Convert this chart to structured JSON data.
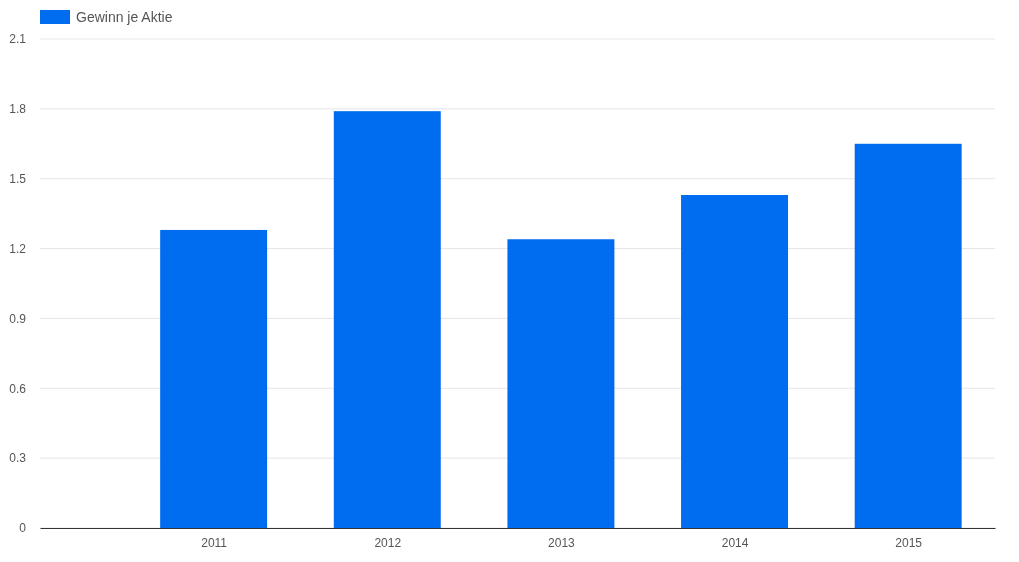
{
  "chart_data": {
    "type": "bar",
    "x": [
      2011,
      2012,
      2013,
      2014,
      2015
    ],
    "xlim": [
      2010,
      2015.5
    ],
    "xticks": [
      2011,
      2012,
      2013,
      2014,
      2015
    ],
    "series": [
      {
        "name": "Gewinn je Aktie",
        "color": "#006cf0",
        "values": [
          1.28,
          1.79,
          1.24,
          1.43,
          1.65
        ]
      }
    ],
    "ylim": [
      0,
      2.1
    ],
    "yticks": [
      0,
      0.3,
      0.6,
      0.9,
      1.2,
      1.5,
      1.8,
      2.1
    ],
    "grid": "y",
    "legend": "top left"
  }
}
